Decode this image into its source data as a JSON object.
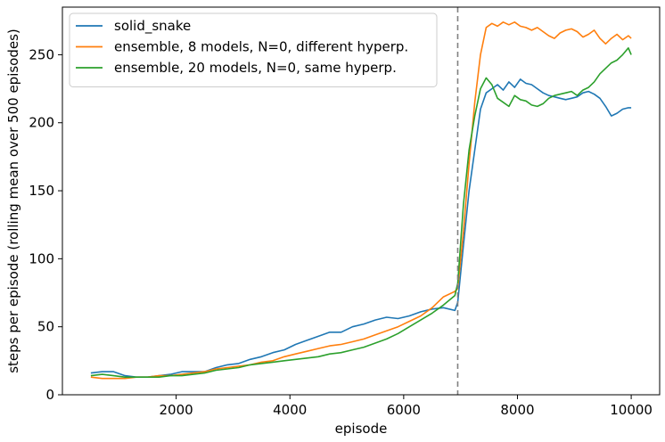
{
  "chart_data": {
    "type": "line",
    "title": "",
    "xlabel": "episode",
    "ylabel": "steps per episode (rolling mean over 500 episodes)",
    "xlim": [
      0,
      10500
    ],
    "ylim": [
      0,
      285
    ],
    "xticks": [
      2000,
      4000,
      6000,
      8000,
      10000
    ],
    "yticks": [
      0,
      50,
      100,
      150,
      200,
      250
    ],
    "grid": false,
    "legend_position": "top-left",
    "vline": {
      "x": 6950,
      "style": "dashed",
      "color": "#808080"
    },
    "series": [
      {
        "name": "solid_snake",
        "color": "#1f77b4",
        "x": [
          500,
          700,
          900,
          1100,
          1300,
          1500,
          1700,
          1900,
          2100,
          2300,
          2500,
          2700,
          2900,
          3100,
          3300,
          3500,
          3700,
          3900,
          4100,
          4300,
          4500,
          4700,
          4900,
          5100,
          5300,
          5500,
          5700,
          5900,
          6100,
          6300,
          6500,
          6700,
          6900,
          6950,
          7050,
          7150,
          7250,
          7350,
          7450,
          7550,
          7650,
          7750,
          7850,
          7950,
          8050,
          8150,
          8250,
          8350,
          8450,
          8550,
          8650,
          8750,
          8850,
          8950,
          9050,
          9150,
          9250,
          9350,
          9450,
          9550,
          9650,
          9750,
          9850,
          9950,
          10000
        ],
        "y": [
          16,
          17,
          17,
          14,
          13,
          13,
          14,
          15,
          17,
          17,
          17,
          20,
          22,
          23,
          26,
          28,
          31,
          33,
          37,
          40,
          43,
          46,
          46,
          50,
          52,
          55,
          57,
          56,
          58,
          61,
          63,
          64,
          62,
          68,
          110,
          150,
          180,
          210,
          222,
          225,
          228,
          224,
          230,
          226,
          232,
          229,
          228,
          225,
          222,
          220,
          219,
          218,
          217,
          218,
          219,
          222,
          223,
          221,
          218,
          212,
          205,
          207,
          210,
          211,
          211
        ]
      },
      {
        "name": "ensemble, 8 models, N=0, different hyperp.",
        "color": "#ff7f0e",
        "x": [
          500,
          700,
          900,
          1100,
          1300,
          1500,
          1700,
          1900,
          2100,
          2300,
          2500,
          2700,
          2900,
          3100,
          3300,
          3500,
          3700,
          3900,
          4100,
          4300,
          4500,
          4700,
          4900,
          5100,
          5300,
          5500,
          5700,
          5900,
          6100,
          6300,
          6500,
          6700,
          6900,
          6950,
          7050,
          7150,
          7250,
          7350,
          7450,
          7550,
          7650,
          7750,
          7850,
          7950,
          8050,
          8150,
          8250,
          8350,
          8450,
          8550,
          8650,
          8750,
          8850,
          8950,
          9050,
          9150,
          9250,
          9350,
          9450,
          9550,
          9650,
          9750,
          9850,
          9950,
          10000
        ],
        "y": [
          13,
          12,
          12,
          12,
          13,
          13,
          14,
          14,
          15,
          16,
          17,
          19,
          20,
          21,
          22,
          24,
          25,
          28,
          30,
          32,
          34,
          36,
          37,
          39,
          41,
          44,
          47,
          50,
          54,
          58,
          64,
          72,
          76,
          78,
          120,
          170,
          215,
          250,
          270,
          273,
          271,
          274,
          272,
          274,
          271,
          270,
          268,
          270,
          267,
          264,
          262,
          266,
          268,
          269,
          267,
          263,
          265,
          268,
          262,
          258,
          262,
          265,
          261,
          264,
          262
        ]
      },
      {
        "name": "ensemble, 20 models, N=0, same hyperp.",
        "color": "#2ca02c",
        "x": [
          500,
          700,
          900,
          1100,
          1300,
          1500,
          1700,
          1900,
          2100,
          2300,
          2500,
          2700,
          2900,
          3100,
          3300,
          3500,
          3700,
          3900,
          4100,
          4300,
          4500,
          4700,
          4900,
          5100,
          5300,
          5500,
          5700,
          5900,
          6100,
          6300,
          6500,
          6700,
          6900,
          6950,
          7050,
          7150,
          7250,
          7350,
          7450,
          7550,
          7650,
          7750,
          7850,
          7950,
          8050,
          8150,
          8250,
          8350,
          8450,
          8550,
          8650,
          8750,
          8850,
          8950,
          9050,
          9150,
          9250,
          9350,
          9450,
          9550,
          9650,
          9750,
          9850,
          9950,
          10000
        ],
        "y": [
          14,
          15,
          14,
          13,
          13,
          13,
          13,
          14,
          14,
          15,
          16,
          18,
          19,
          20,
          22,
          23,
          24,
          25,
          26,
          27,
          28,
          30,
          31,
          33,
          35,
          38,
          41,
          45,
          50,
          55,
          60,
          66,
          73,
          82,
          140,
          180,
          205,
          225,
          233,
          228,
          218,
          215,
          212,
          220,
          217,
          216,
          213,
          212,
          214,
          218,
          220,
          221,
          222,
          223,
          220,
          224,
          226,
          230,
          236,
          240,
          244,
          246,
          250,
          255,
          250
        ]
      }
    ]
  }
}
